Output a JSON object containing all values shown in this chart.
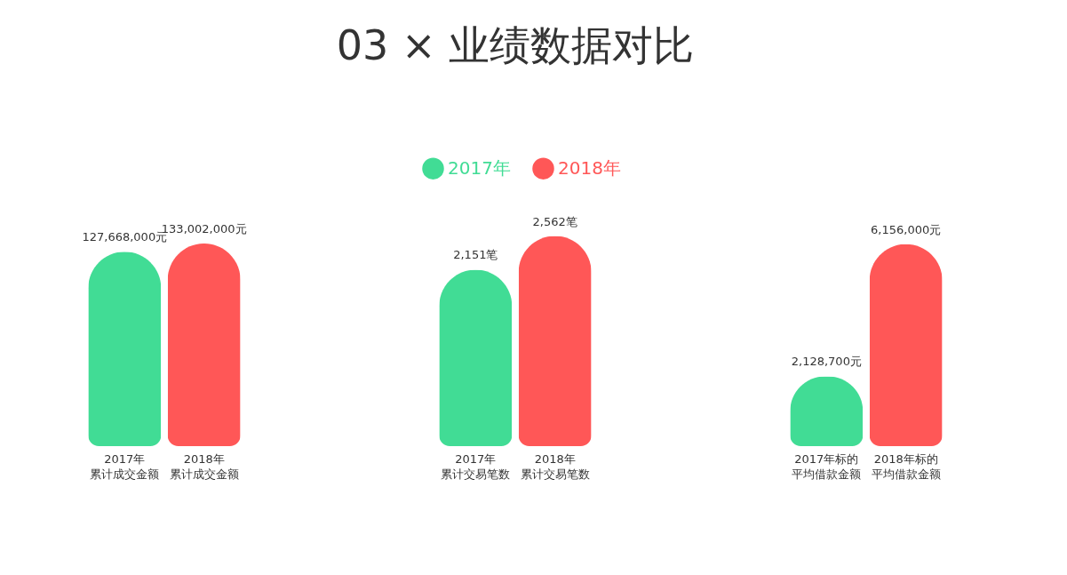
{
  "chart_data": [
    {
      "type": "bar",
      "categories": [
        "2017年累计成交金额",
        "2018年累计成交金额"
      ],
      "series": [
        {
          "color": "#41dc95",
          "values": [
            127668000,
            null
          ],
          "value_labels": [
            "127,668,000元",
            null
          ]
        },
        {
          "color": "#ff5757",
          "values": [
            null,
            133002000
          ],
          "value_labels": [
            null,
            "133,002,000元"
          ]
        }
      ]
    },
    {
      "type": "bar",
      "title": "03 × 业绩数据对比",
      "legend": "top",
      "categories": [
        "2017年累计交易笔数",
        "2018年累计交易笔数"
      ],
      "series": [
        {
          "name": "2017年",
          "color": "#41dc95",
          "values": [
            2151,
            null
          ],
          "value_labels": [
            "2,151笔",
            null
          ]
        },
        {
          "name": "2018年",
          "color": "#ff5757",
          "values": [
            null,
            2562
          ],
          "value_labels": [
            null,
            "2,562笔"
          ]
        }
      ]
    },
    {
      "type": "bar",
      "categories": [
        "2017年标的平均借款金额",
        "2018年标的平均借款金额"
      ],
      "series": [
        {
          "color": "#41dc95",
          "values": [
            2128700,
            null
          ],
          "value_labels": [
            "2,128,700元",
            null
          ]
        },
        {
          "color": "#ff5757",
          "values": [
            null,
            6156000
          ],
          "value_labels": [
            null,
            "6,156,000元"
          ]
        }
      ]
    }
  ]
}
